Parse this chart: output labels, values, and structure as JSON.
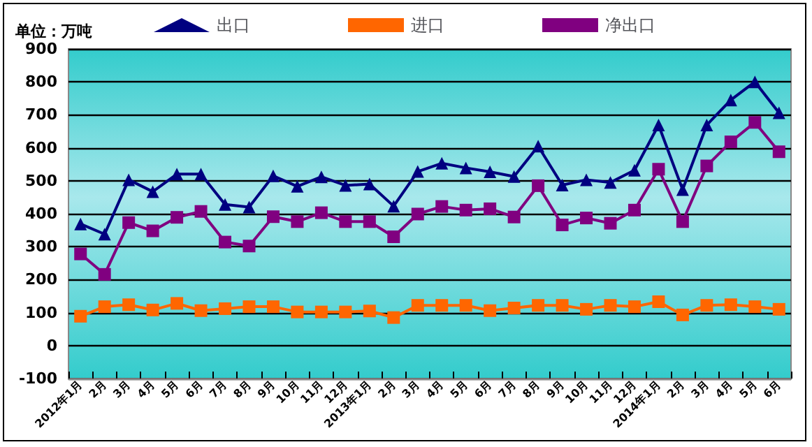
{
  "chart_data": {
    "type": "line",
    "ylabel": "单位：万吨",
    "categories": [
      "2012年1月",
      "2月",
      "3月",
      "4月",
      "5月",
      "6月",
      "7月",
      "8月",
      "9月",
      "10月",
      "11月",
      "12月",
      "2013年1月",
      "2月",
      "3月",
      "4月",
      "5月",
      "6月",
      "7月",
      "8月",
      "9月",
      "10月",
      "11月",
      "12月",
      "2014年1月",
      "2月",
      "3月",
      "4月",
      "5月",
      "6月"
    ],
    "series": [
      {
        "name": "出口",
        "color": "#000080",
        "marker": "triangle",
        "values": [
          369,
          338,
          503,
          467,
          520,
          520,
          428,
          420,
          515,
          483,
          512,
          486,
          490,
          423,
          528,
          553,
          539,
          527,
          513,
          605,
          487,
          503,
          495,
          532,
          669,
          473,
          669,
          745,
          800,
          706
        ]
      },
      {
        "name": "进口",
        "color": "#ff6600",
        "marker": "square",
        "values": [
          89,
          118,
          124,
          108,
          128,
          106,
          112,
          118,
          118,
          102,
          102,
          102,
          105,
          85,
          122,
          122,
          122,
          106,
          114,
          122,
          122,
          110,
          122,
          118,
          133,
          93,
          122,
          124,
          118,
          110
        ]
      },
      {
        "name": "净出口",
        "color": "#800080",
        "marker": "square",
        "values": [
          278,
          216,
          373,
          348,
          389,
          407,
          314,
          302,
          391,
          376,
          403,
          376,
          376,
          330,
          399,
          422,
          411,
          415,
          390,
          485,
          366,
          387,
          371,
          411,
          535,
          376,
          545,
          618,
          677,
          588
        ]
      }
    ],
    "ylim": [
      -100,
      900
    ],
    "yticks": [
      -100,
      0,
      100,
      200,
      300,
      400,
      500,
      600,
      700,
      800,
      900
    ],
    "grid": "y",
    "legend": "top",
    "line_style": "solid"
  }
}
